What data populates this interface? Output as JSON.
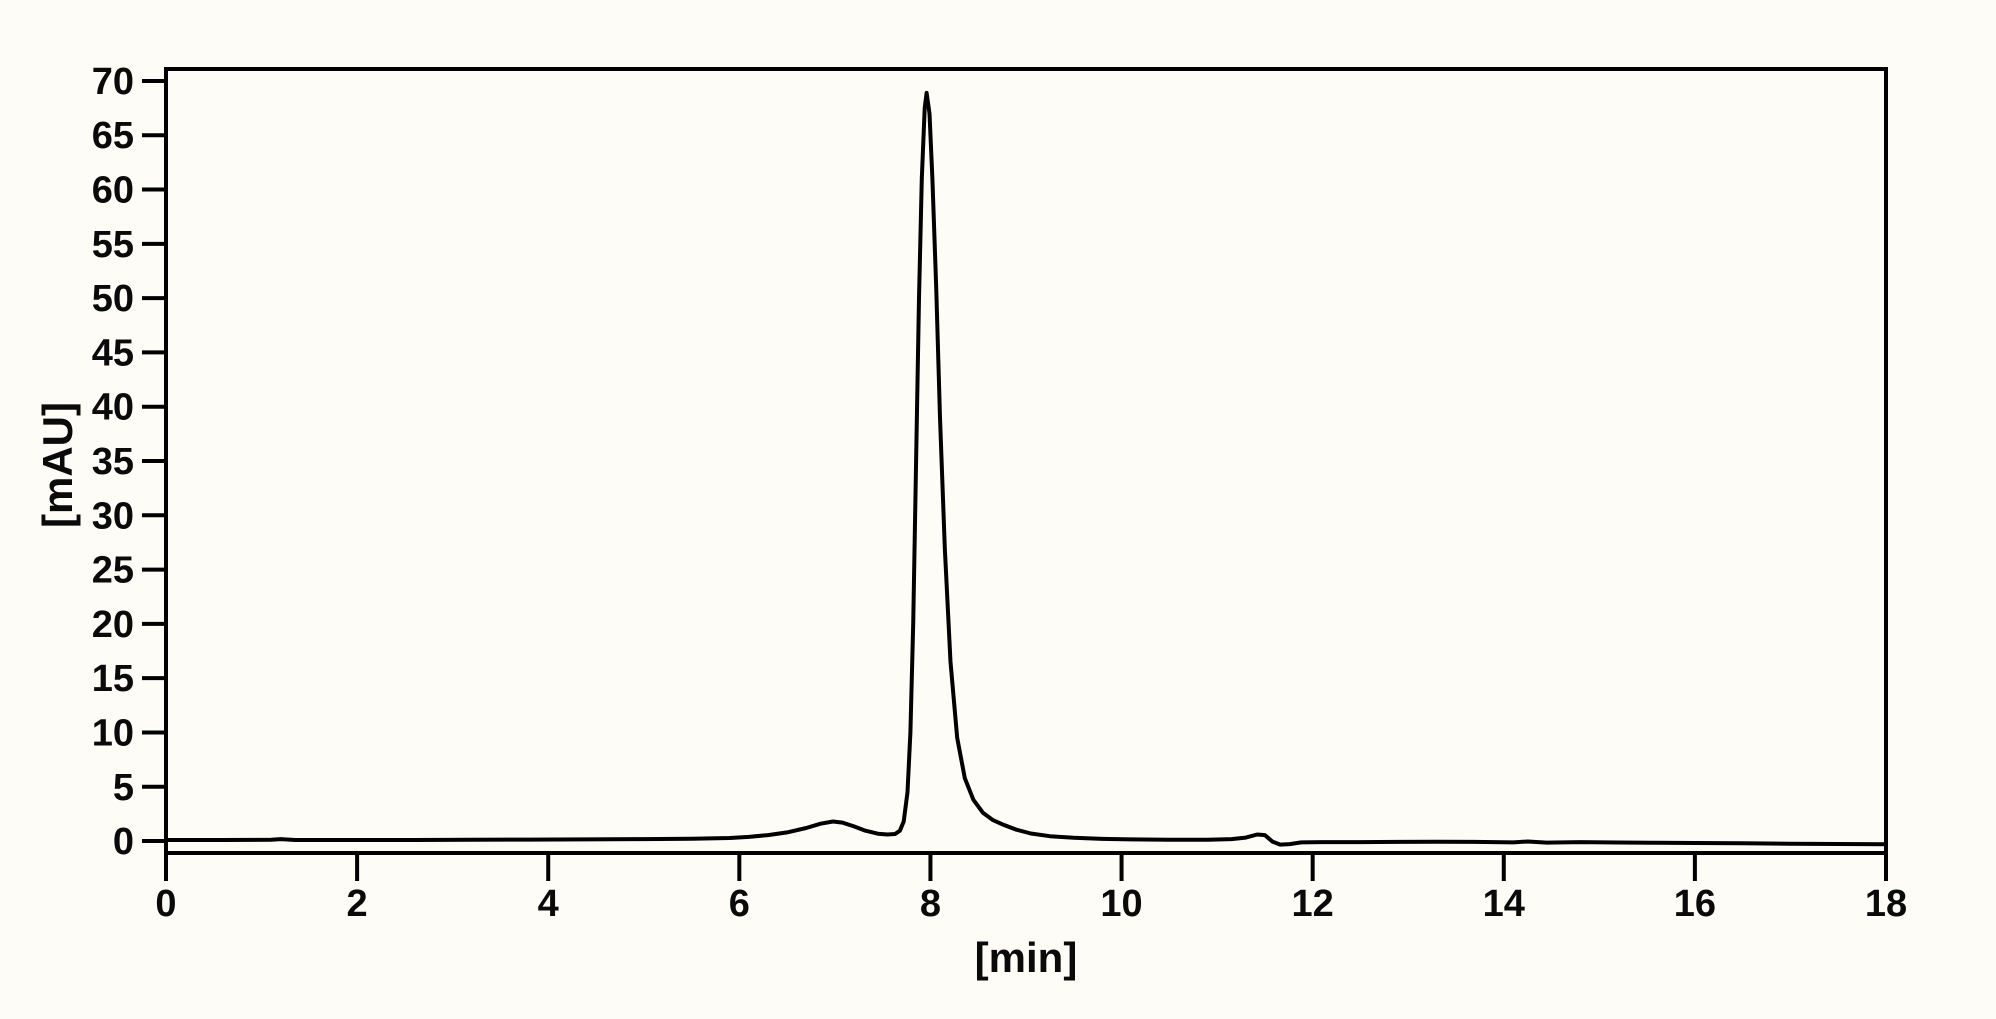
{
  "window": {
    "background_color": "#fdfcf6"
  },
  "plot": {
    "frame_color": "#000000",
    "trace_color": "#000000",
    "tick_color": "#000000",
    "label_color": "#0a0a0a"
  },
  "chart_data": {
    "type": "line",
    "title": "",
    "xlabel": "[min]",
    "ylabel": "[mAU]",
    "xlim": [
      0,
      18
    ],
    "ylim": [
      -1.1,
      71.1
    ],
    "x_ticks": [
      0,
      2,
      4,
      6,
      8,
      10,
      12,
      14,
      16,
      18
    ],
    "y_ticks": [
      0,
      5,
      10,
      15,
      20,
      25,
      30,
      35,
      40,
      45,
      50,
      55,
      60,
      65,
      70
    ],
    "grid": false,
    "legend": null,
    "series": [
      {
        "name": "detector-signal",
        "color": "#000000",
        "points": [
          [
            0.0,
            0.1
          ],
          [
            0.6,
            0.1
          ],
          [
            1.1,
            0.12
          ],
          [
            1.2,
            0.18
          ],
          [
            1.35,
            0.1
          ],
          [
            2.0,
            0.1
          ],
          [
            2.6,
            0.1
          ],
          [
            3.2,
            0.12
          ],
          [
            3.8,
            0.13
          ],
          [
            4.4,
            0.15
          ],
          [
            5.0,
            0.18
          ],
          [
            5.5,
            0.22
          ],
          [
            5.9,
            0.28
          ],
          [
            6.1,
            0.38
          ],
          [
            6.3,
            0.55
          ],
          [
            6.5,
            0.8
          ],
          [
            6.7,
            1.2
          ],
          [
            6.85,
            1.6
          ],
          [
            6.98,
            1.8
          ],
          [
            7.08,
            1.7
          ],
          [
            7.2,
            1.35
          ],
          [
            7.32,
            0.95
          ],
          [
            7.45,
            0.68
          ],
          [
            7.55,
            0.6
          ],
          [
            7.63,
            0.65
          ],
          [
            7.68,
            0.95
          ],
          [
            7.72,
            1.8
          ],
          [
            7.76,
            4.5
          ],
          [
            7.79,
            10.0
          ],
          [
            7.82,
            20.0
          ],
          [
            7.85,
            35.0
          ],
          [
            7.88,
            50.0
          ],
          [
            7.91,
            61.0
          ],
          [
            7.94,
            67.5
          ],
          [
            7.96,
            68.9
          ],
          [
            7.99,
            67.0
          ],
          [
            8.02,
            61.0
          ],
          [
            8.06,
            51.0
          ],
          [
            8.1,
            39.0
          ],
          [
            8.15,
            27.0
          ],
          [
            8.21,
            16.5
          ],
          [
            8.28,
            9.5
          ],
          [
            8.36,
            5.8
          ],
          [
            8.45,
            3.8
          ],
          [
            8.55,
            2.6
          ],
          [
            8.65,
            1.95
          ],
          [
            8.75,
            1.55
          ],
          [
            8.9,
            1.05
          ],
          [
            9.05,
            0.7
          ],
          [
            9.25,
            0.45
          ],
          [
            9.5,
            0.3
          ],
          [
            9.8,
            0.2
          ],
          [
            10.1,
            0.15
          ],
          [
            10.5,
            0.12
          ],
          [
            10.9,
            0.12
          ],
          [
            11.15,
            0.18
          ],
          [
            11.3,
            0.32
          ],
          [
            11.42,
            0.6
          ],
          [
            11.5,
            0.55
          ],
          [
            11.58,
            -0.05
          ],
          [
            11.66,
            -0.33
          ],
          [
            11.76,
            -0.28
          ],
          [
            11.88,
            -0.12
          ],
          [
            12.1,
            -0.1
          ],
          [
            12.5,
            -0.1
          ],
          [
            12.9,
            -0.08
          ],
          [
            13.3,
            -0.06
          ],
          [
            13.7,
            -0.08
          ],
          [
            14.1,
            -0.12
          ],
          [
            14.25,
            -0.04
          ],
          [
            14.45,
            -0.14
          ],
          [
            14.8,
            -0.1
          ],
          [
            15.2,
            -0.13
          ],
          [
            15.6,
            -0.16
          ],
          [
            16.0,
            -0.18
          ],
          [
            16.5,
            -0.21
          ],
          [
            17.0,
            -0.24
          ],
          [
            17.5,
            -0.27
          ],
          [
            18.0,
            -0.3
          ]
        ]
      }
    ]
  }
}
